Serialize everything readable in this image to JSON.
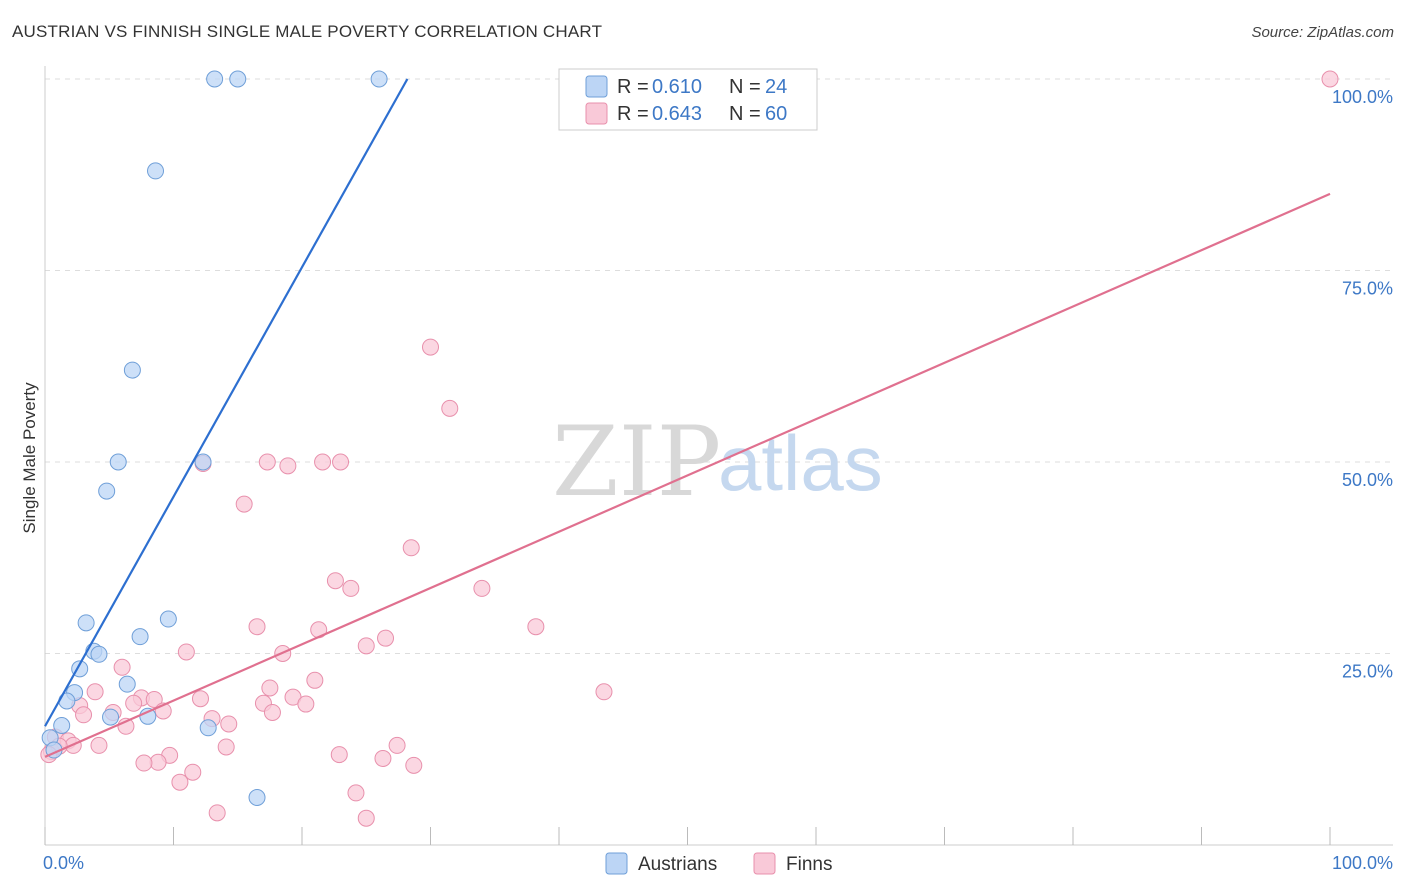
{
  "title": "AUSTRIAN VS FINNISH SINGLE MALE POVERTY CORRELATION CHART",
  "source": "Source: ZipAtlas.com",
  "watermark": {
    "zip": "ZIP",
    "atlas": "atlas"
  },
  "colors": {
    "austrians_fill": "#bcd5f5",
    "austrians_stroke": "#6f9fd8",
    "austrians_line": "#2d6fd0",
    "finns_fill": "#f9c9d8",
    "finns_stroke": "#e890ac",
    "finns_line": "#e0708f",
    "grid": "#dddddd",
    "tick_label": "#3d78c6"
  },
  "legend": {
    "austrians": {
      "r_label": "R = ",
      "r_value": "0.610",
      "n_label": "N = ",
      "n_value": "24"
    },
    "finns": {
      "r_label": "R = ",
      "r_value": "0.643",
      "n_label": "N = ",
      "n_value": "60"
    }
  },
  "chart_data": {
    "type": "scatter",
    "title": "AUSTRIAN VS FINNISH SINGLE MALE POVERTY CORRELATION CHART",
    "xlabel": "",
    "ylabel": "Single Male Poverty",
    "xlim": [
      0,
      100
    ],
    "ylim": [
      0,
      100
    ],
    "x_tick_labels": {
      "min": "0.0%",
      "max": "100.0%"
    },
    "y_ticks": [
      {
        "value": 25,
        "label": "25.0%"
      },
      {
        "value": 50,
        "label": "50.0%"
      },
      {
        "value": 75,
        "label": "75.0%"
      },
      {
        "value": 100,
        "label": "100.0%"
      }
    ],
    "series": [
      {
        "name": "Austrians",
        "points": [
          [
            13.2,
            100
          ],
          [
            15.0,
            100
          ],
          [
            26.0,
            100
          ],
          [
            8.6,
            88
          ],
          [
            6.8,
            62
          ],
          [
            5.7,
            50
          ],
          [
            12.3,
            50
          ],
          [
            4.8,
            46.2
          ],
          [
            3.2,
            29
          ],
          [
            7.4,
            27.2
          ],
          [
            9.6,
            29.5
          ],
          [
            3.8,
            25.3
          ],
          [
            4.2,
            24.9
          ],
          [
            2.7,
            23
          ],
          [
            6.4,
            21
          ],
          [
            2.3,
            19.9
          ],
          [
            1.7,
            18.8
          ],
          [
            5.1,
            16.7
          ],
          [
            8.0,
            16.8
          ],
          [
            1.3,
            15.6
          ],
          [
            12.7,
            15.3
          ],
          [
            0.4,
            14.0
          ],
          [
            0.7,
            12.4
          ],
          [
            16.5,
            6.2
          ]
        ],
        "trend": {
          "x": [
            0,
            28.2
          ],
          "y": [
            15.5,
            100
          ]
        }
      },
      {
        "name": "Finns",
        "points": [
          [
            100,
            100
          ],
          [
            30.0,
            65
          ],
          [
            31.5,
            57
          ],
          [
            17.3,
            50
          ],
          [
            18.9,
            49.5
          ],
          [
            21.6,
            50
          ],
          [
            23.0,
            50
          ],
          [
            12.3,
            49.8
          ],
          [
            15.5,
            44.5
          ],
          [
            28.5,
            38.8
          ],
          [
            22.6,
            34.5
          ],
          [
            23.8,
            33.5
          ],
          [
            34.0,
            33.5
          ],
          [
            16.5,
            28.5
          ],
          [
            21.3,
            28.1
          ],
          [
            38.2,
            28.5
          ],
          [
            26.5,
            27
          ],
          [
            25.0,
            26
          ],
          [
            18.5,
            25
          ],
          [
            11.0,
            25.2
          ],
          [
            6.0,
            23.2
          ],
          [
            21.0,
            21.5
          ],
          [
            17.5,
            20.5
          ],
          [
            3.9,
            20
          ],
          [
            12.1,
            19.1
          ],
          [
            19.3,
            19.3
          ],
          [
            7.5,
            19.2
          ],
          [
            8.5,
            19
          ],
          [
            6.9,
            18.5
          ],
          [
            2.7,
            18.2
          ],
          [
            17.0,
            18.5
          ],
          [
            20.3,
            18.4
          ],
          [
            9.2,
            17.5
          ],
          [
            3.0,
            17.0
          ],
          [
            5.3,
            17.3
          ],
          [
            17.7,
            17.3
          ],
          [
            43.5,
            20
          ],
          [
            14.3,
            15.8
          ],
          [
            6.3,
            15.5
          ],
          [
            13.0,
            16.5
          ],
          [
            0.8,
            14.1
          ],
          [
            1.8,
            13.6
          ],
          [
            2.2,
            13.0
          ],
          [
            4.2,
            13.0
          ],
          [
            14.1,
            12.8
          ],
          [
            22.9,
            11.8
          ],
          [
            9.7,
            11.7
          ],
          [
            27.4,
            13.0
          ],
          [
            26.3,
            11.3
          ],
          [
            8.8,
            10.8
          ],
          [
            7.7,
            10.7
          ],
          [
            28.7,
            10.4
          ],
          [
            11.5,
            9.5
          ],
          [
            10.5,
            8.2
          ],
          [
            24.2,
            6.8
          ],
          [
            13.4,
            4.2
          ],
          [
            25.0,
            3.5
          ],
          [
            0.5,
            12.2
          ],
          [
            1.1,
            12.9
          ],
          [
            0.3,
            11.8
          ]
        ],
        "trend": {
          "x": [
            0,
            100
          ],
          "y": [
            11.5,
            85
          ]
        }
      }
    ]
  }
}
